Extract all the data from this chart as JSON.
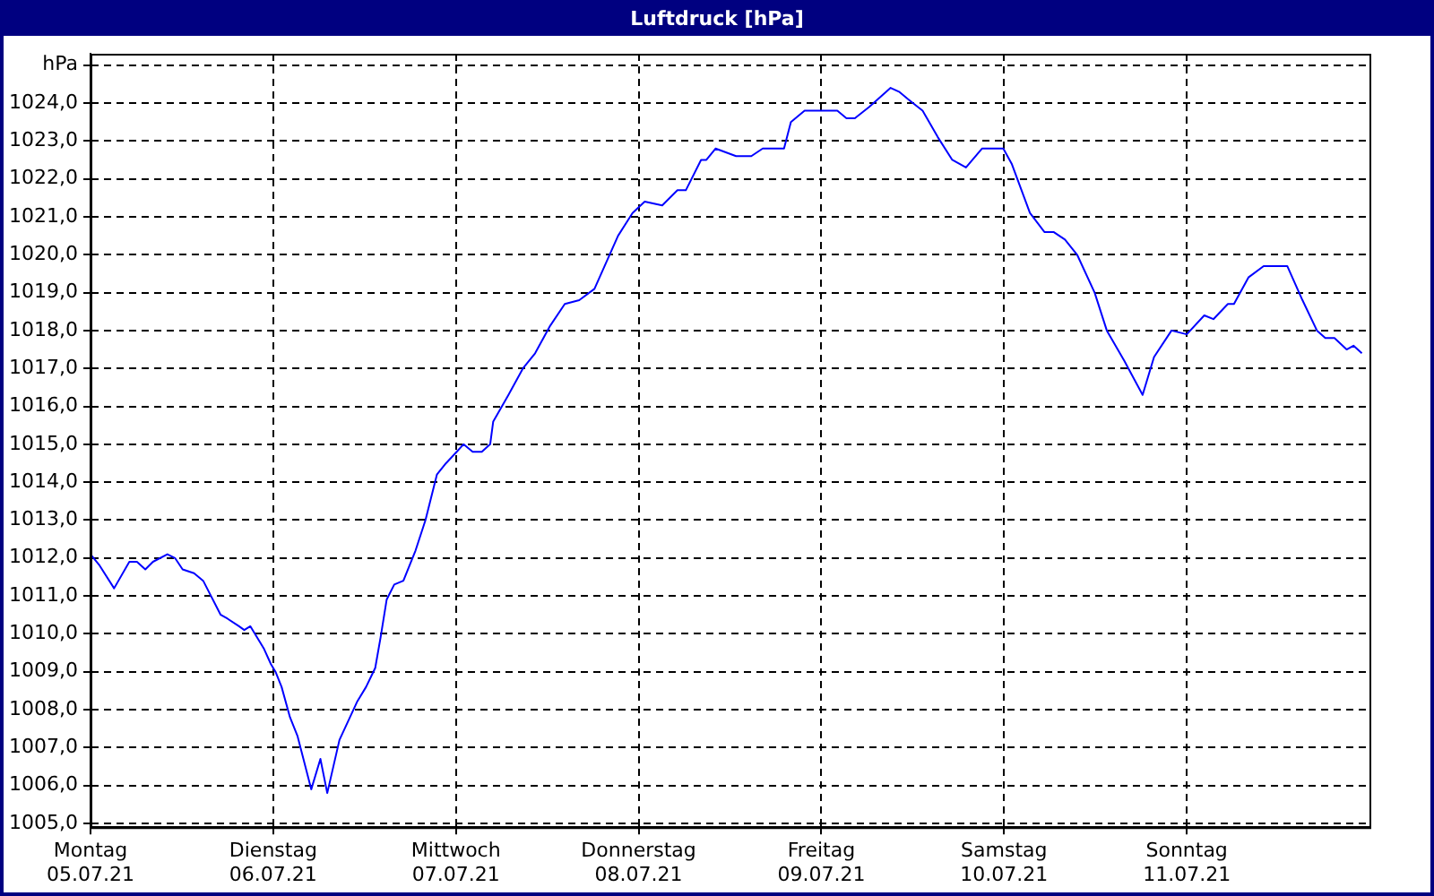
{
  "chart_data": {
    "type": "line",
    "title": "Luftdruck [hPa]",
    "xlim": [
      "--07-05",
      "--07-12"
    ],
    "xticks": [
      {
        "value": "--07-05",
        "label": "Montag 05.07.21"
      },
      {
        "value": "--07-06",
        "label": "Dienstag 06.07.21"
      },
      {
        "value": "--07-07",
        "label": "Mittwoch 07.07.21"
      },
      {
        "value": "--07-08",
        "label": "Donnerstag 08.07.21"
      },
      {
        "value": "--07-09",
        "label": "Freitag 09.07.21"
      },
      {
        "value": "--07-10",
        "label": "Samstag 10.07.21"
      },
      {
        "value": "--07-11",
        "label": "Sonntag 11.07.21"
      }
    ],
    "ylim": [
      1004.9,
      1025.3
    ],
    "yticks": [
      {
        "value": 1005,
        "label": "1005,0"
      },
      {
        "value": 1006,
        "label": "1006,0"
      },
      {
        "value": 1007,
        "label": "1007,0"
      },
      {
        "value": 1008,
        "label": "1008,0"
      },
      {
        "value": 1009,
        "label": "1009,0"
      },
      {
        "value": 1010,
        "label": "1010,0"
      },
      {
        "value": 1011,
        "label": "1011,0"
      },
      {
        "value": 1012,
        "label": "1012,0"
      },
      {
        "value": 1013,
        "label": "1013,0"
      },
      {
        "value": 1014,
        "label": "1014,0"
      },
      {
        "value": 1015,
        "label": "1015,0"
      },
      {
        "value": 1016,
        "label": "1016,0"
      },
      {
        "value": 1017,
        "label": "1017,0"
      },
      {
        "value": 1018,
        "label": "1018,0"
      },
      {
        "value": 1019,
        "label": "1019,0"
      },
      {
        "value": 1020,
        "label": "1020,0"
      },
      {
        "value": 1021,
        "label": "1021,0"
      },
      {
        "value": 1022,
        "label": "1022,0"
      },
      {
        "value": 1023,
        "label": "1023,0"
      },
      {
        "value": 1024,
        "label": "1024,0"
      },
      {
        "value": 1025,
        "label": "hPa"
      }
    ],
    "grid": true,
    "marker": "none",
    "line_style": "solid",
    "series": [
      {
        "color": "#0000ff",
        "x": [
          "--07-05T00:00",
          "--07-05T01:12",
          "--07-05T03:06",
          "--07-05T05:06",
          "--07-05T06:06",
          "--07-05T07:12",
          "--07-05T08:12",
          "--07-05T10:06",
          "--07-05T11:06",
          "--07-05T12:06",
          "--07-05T13:36",
          "--07-05T14:48",
          "--07-05T17:06",
          "--07-05T18:00",
          "--07-05T19:30",
          "--07-05T20:12",
          "--07-05T21:00",
          "--07-05T22:48",
          "--07-05T23:42",
          "--07-06T00:18",
          "--07-06T01:06",
          "--07-06T02:12",
          "--07-06T03:12",
          "--07-06T05:00",
          "--07-06T06:12",
          "--07-06T07:06",
          "--07-06T08:42",
          "--07-06T11:00",
          "--07-06T12:12",
          "--07-06T13:24",
          "--07-06T14:06",
          "--07-06T14:54",
          "--07-06T15:54",
          "--07-06T17:06",
          "--07-06T18:42",
          "--07-06T20:00",
          "--07-06T21:30",
          "--07-06T22:42",
          "--07-07T00:06",
          "--07-07T01:00",
          "--07-07T02:12",
          "--07-07T03:24",
          "--07-07T04:30",
          "--07-07T04:54",
          "--07-07T06:54",
          "--07-07T08:48",
          "--07-07T10:24",
          "--07-07T12:18",
          "--07-07T14:18",
          "--07-07T16:12",
          "--07-07T18:12",
          "--07-07T21:18",
          "--07-07T23:12",
          "--07-08T00:48",
          "--07-08T03:06",
          "--07-08T05:06",
          "--07-08T06:12",
          "--07-08T08:12",
          "--07-08T08:54",
          "--07-08T10:06",
          "--07-08T12:48",
          "--07-08T14:48",
          "--07-08T16:18",
          "--07-08T19:06",
          "--07-08T20:00",
          "--07-08T21:48",
          "--07-09T02:06",
          "--07-09T03:18",
          "--07-09T04:24",
          "--07-09T06:18",
          "--07-09T09:06",
          "--07-09T10:12",
          "--07-09T11:24",
          "--07-09T13:18",
          "--07-09T15:18",
          "--07-09T17:12",
          "--07-09T19:00",
          "--07-09T21:06",
          "--07-09T23:54",
          "--07-10T01:00",
          "--07-10T03:24",
          "--07-10T05:18",
          "--07-10T06:30",
          "--07-10T08:00",
          "--07-10T09:36",
          "--07-10T11:54",
          "--07-10T13:30",
          "--07-10T15:48",
          "--07-10T18:12",
          "--07-10T19:42",
          "--07-10T22:00",
          "--07-11T00:00",
          "--07-11T02:18",
          "--07-11T03:30",
          "--07-11T05:24",
          "--07-11T06:12",
          "--07-11T08:06",
          "--07-11T10:06",
          "--07-11T13:12",
          "--07-11T15:12",
          "--07-11T17:06",
          "--07-11T18:12",
          "--07-11T19:24",
          "--07-11T21:00",
          "--07-11T21:54",
          "--07-11T23:00"
        ],
        "values": [
          1012.1,
          1011.8,
          1011.2,
          1011.9,
          1011.9,
          1011.7,
          1011.9,
          1012.1,
          1012.0,
          1011.7,
          1011.6,
          1011.4,
          1010.5,
          1010.4,
          1010.2,
          1010.1,
          1010.2,
          1009.6,
          1009.2,
          1009.0,
          1008.6,
          1007.8,
          1007.3,
          1005.9,
          1006.7,
          1005.8,
          1007.2,
          1008.2,
          1008.6,
          1009.1,
          1009.9,
          1010.9,
          1011.3,
          1011.4,
          1012.2,
          1013.0,
          1014.2,
          1014.5,
          1014.8,
          1015.0,
          1014.8,
          1014.8,
          1015.0,
          1015.6,
          1016.3,
          1017.0,
          1017.4,
          1018.1,
          1018.7,
          1018.8,
          1019.1,
          1020.5,
          1021.1,
          1021.4,
          1021.3,
          1021.7,
          1021.7,
          1022.5,
          1022.5,
          1022.8,
          1022.6,
          1022.6,
          1022.8,
          1022.8,
          1023.5,
          1023.8,
          1023.8,
          1023.6,
          1023.6,
          1023.9,
          1024.4,
          1024.3,
          1024.1,
          1023.8,
          1023.1,
          1022.5,
          1022.3,
          1022.8,
          1022.8,
          1022.4,
          1021.1,
          1020.6,
          1020.6,
          1020.4,
          1020.0,
          1019.0,
          1018.0,
          1017.2,
          1016.3,
          1017.3,
          1018.0,
          1017.9,
          1018.4,
          1018.3,
          1018.7,
          1018.7,
          1019.4,
          1019.7,
          1019.7,
          1018.8,
          1018.0,
          1017.8,
          1017.8,
          1017.5,
          1017.6,
          1017.4
        ]
      }
    ]
  }
}
